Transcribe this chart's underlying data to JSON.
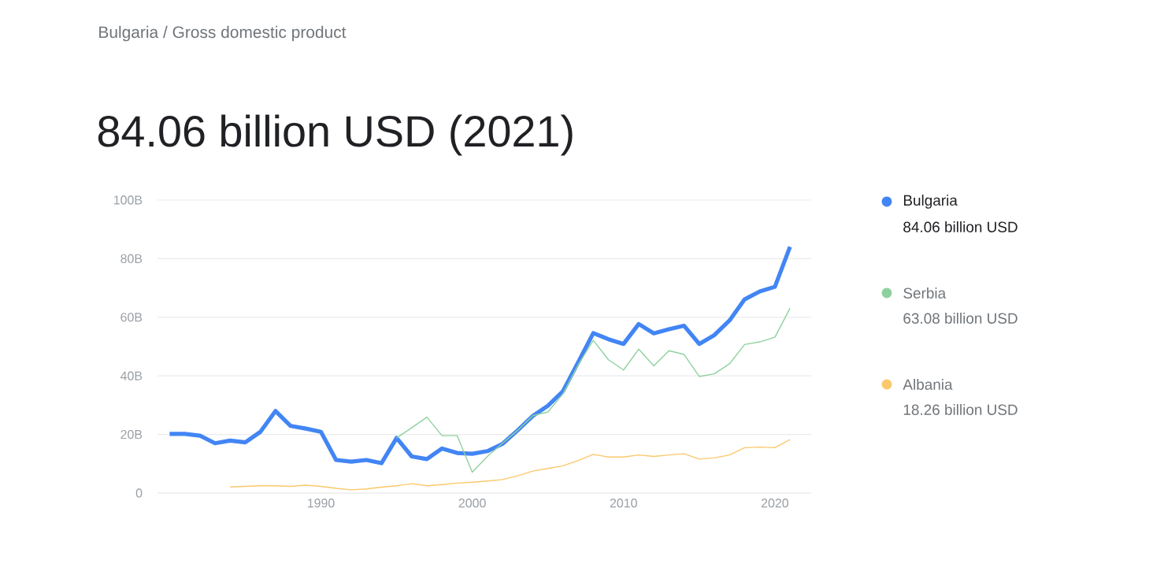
{
  "chart_data": {
    "type": "line",
    "subtitle": "Bulgaria / Gross domestic product",
    "title": "84.06 billion USD (2021)",
    "xlim": [
      1979.2,
      2022.4
    ],
    "xticks": [
      1990,
      2000,
      2010,
      2020
    ],
    "ylim": [
      0,
      100
    ],
    "yticks": [
      0,
      {
        "value": 20,
        "label": "20B"
      },
      {
        "value": 40,
        "label": "40B"
      },
      {
        "value": 60,
        "label": "60B"
      },
      {
        "value": 80,
        "label": "80B"
      },
      {
        "value": 100,
        "label": "100B"
      }
    ],
    "grid": "y",
    "legend": "right",
    "marker": "none",
    "line_style": "solid",
    "annotations": [
      "84.06 billion USD",
      "63.08 billion USD",
      "18.26 billion USD"
    ],
    "series": [
      {
        "name": "Bulgaria",
        "color": "#4285f4",
        "x": [
          1980,
          1981,
          1982,
          1983,
          1984,
          1985,
          1986,
          1987,
          1988,
          1989,
          1990,
          1991,
          1992,
          1993,
          1994,
          1995,
          1996,
          1997,
          1998,
          1999,
          2000,
          2001,
          2002,
          2003,
          2004,
          2005,
          2006,
          2007,
          2008,
          2009,
          2010,
          2011,
          2012,
          2013,
          2014,
          2015,
          2016,
          2017,
          2018,
          2019,
          2020,
          2021
        ],
        "values": [
          20.2,
          20.2,
          19.6,
          17,
          17.9,
          17.3,
          20.9,
          28,
          22.9,
          22,
          20.9,
          11.3,
          10.7,
          11.3,
          10.2,
          18.8,
          12.5,
          11.6,
          15.2,
          13.7,
          13.4,
          14.3,
          16.8,
          21.4,
          26.3,
          29.8,
          34.8,
          44.6,
          54.6,
          52.5,
          50.9,
          57.7,
          54.5,
          55.9,
          57.1,
          50.9,
          53.9,
          58.9,
          66.1,
          68.8,
          70.4,
          84.06
        ]
      },
      {
        "name": "Serbia",
        "color": "#8fd19e",
        "x": [
          1995,
          1996,
          1997,
          1998,
          1999,
          2000,
          2001,
          2002,
          2003,
          2004,
          2005,
          2006,
          2007,
          2008,
          2009,
          2010,
          2011,
          2012,
          2013,
          2014,
          2015,
          2016,
          2017,
          2018,
          2019,
          2020,
          2021
        ],
        "values": [
          18.8,
          22.3,
          25.9,
          19.6,
          19.6,
          7.1,
          12.5,
          17,
          21.4,
          26.4,
          27.7,
          33.9,
          43.8,
          52.1,
          45.5,
          42,
          49.1,
          43.4,
          48.6,
          47.3,
          39.8,
          40.7,
          44.1,
          50.7,
          51.6,
          53.2,
          63.08
        ]
      },
      {
        "name": "Albania",
        "color": "#fbc86b",
        "x": [
          1984,
          1985,
          1986,
          1987,
          1988,
          1989,
          1990,
          1991,
          1992,
          1993,
          1994,
          1995,
          1996,
          1997,
          1998,
          1999,
          2000,
          2001,
          2002,
          2003,
          2004,
          2005,
          2006,
          2007,
          2008,
          2009,
          2010,
          2011,
          2012,
          2013,
          2014,
          2015,
          2016,
          2017,
          2018,
          2019,
          2020,
          2021
        ],
        "values": [
          2.1,
          2.3,
          2.5,
          2.5,
          2.3,
          2.7,
          2.3,
          1.6,
          1.1,
          1.4,
          2,
          2.5,
          3.2,
          2.5,
          2.9,
          3.4,
          3.7,
          4.1,
          4.6,
          5.9,
          7.5,
          8.4,
          9.3,
          11.1,
          13.2,
          12.3,
          12.3,
          13,
          12.5,
          13,
          13.4,
          11.6,
          12,
          13,
          15.5,
          15.7,
          15.5,
          18.26
        ]
      }
    ]
  }
}
